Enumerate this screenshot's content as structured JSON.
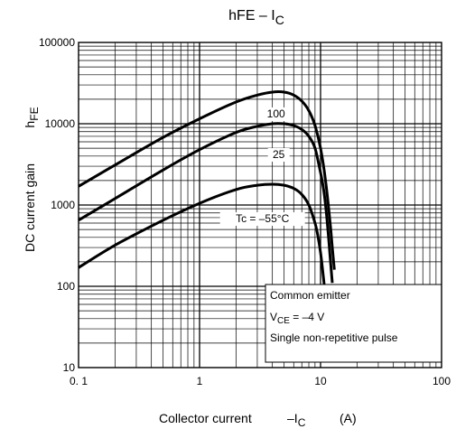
{
  "chart_data": {
    "type": "line",
    "title": {
      "main": "hFE – I",
      "sub": "C"
    },
    "xlabel": {
      "main": "Collector current",
      "minus": "–I",
      "sub": "C",
      "unit": "(A)"
    },
    "ylabel": {
      "main": "DC current gain",
      "h": "h",
      "sub": "FE"
    },
    "xscale": "log",
    "yscale": "log",
    "xlim": [
      0.1,
      100
    ],
    "ylim": [
      10,
      100000
    ],
    "grid": true,
    "x_ticks": [
      {
        "value": 0.1,
        "label": "0. 1"
      },
      {
        "value": 1,
        "label": "1"
      },
      {
        "value": 10,
        "label": "10"
      },
      {
        "value": 100,
        "label": "100"
      }
    ],
    "y_ticks": [
      {
        "value": 10,
        "label": "10"
      },
      {
        "value": 100,
        "label": "100"
      },
      {
        "value": 1000,
        "label": "1000"
      },
      {
        "value": 10000,
        "label": "10000"
      },
      {
        "value": 100000,
        "label": "100000"
      }
    ],
    "series": [
      {
        "name": "100",
        "x": [
          0.1,
          0.2,
          0.5,
          1,
          2,
          3,
          4,
          5,
          6,
          7,
          8,
          9,
          10,
          11,
          12,
          12.5,
          13
        ],
        "y": [
          1700,
          3100,
          6800,
          11500,
          18500,
          22500,
          24500,
          24500,
          22500,
          19000,
          14500,
          9500,
          5000,
          2000,
          600,
          300,
          160
        ]
      },
      {
        "name": "25",
        "x": [
          0.1,
          0.2,
          0.5,
          1,
          2,
          3,
          4,
          5,
          6,
          7,
          8,
          9,
          10,
          10.5,
          11,
          11.5,
          12,
          12.5
        ],
        "y": [
          650,
          1200,
          2700,
          4800,
          7800,
          9300,
          10000,
          10000,
          9500,
          8500,
          7000,
          5000,
          2500,
          1700,
          1000,
          500,
          230,
          110
        ]
      },
      {
        "name": "Tc = –55°C",
        "x": [
          0.1,
          0.2,
          0.5,
          1,
          2,
          3,
          4,
          5,
          6,
          7,
          8,
          9,
          9.5,
          10,
          10.5,
          11
        ],
        "y": [
          170,
          320,
          650,
          1050,
          1550,
          1750,
          1800,
          1750,
          1600,
          1350,
          1000,
          600,
          420,
          260,
          140,
          70
        ]
      }
    ],
    "annotations": {
      "common_emitter": "Common emitter",
      "vce_prefix": "V",
      "vce_sub": "CE",
      "vce_value": " = –4 V",
      "pulse": "Single non-repetitive pulse"
    },
    "colors": {
      "line": "#000000",
      "grid": "#000000",
      "background": "#ffffff"
    }
  }
}
